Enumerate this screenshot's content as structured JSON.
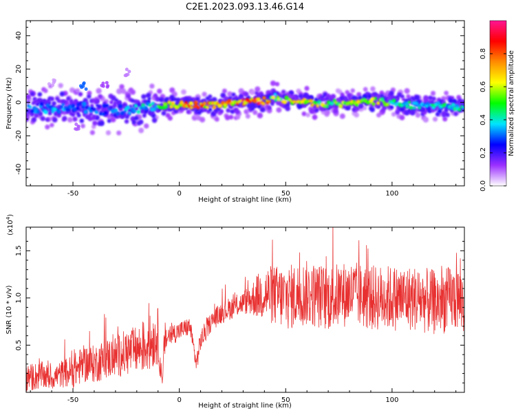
{
  "figure": {
    "title": "C2E1.2023.093.13.46.G14"
  },
  "chart_data": [
    {
      "type": "heatmap",
      "panel": "top",
      "xlabel": "Height of straight line (km)",
      "ylabel": "Frequency (Hz)",
      "xlim": [
        -72,
        134
      ],
      "ylim": [
        -50,
        49
      ],
      "xticks": [
        -50,
        0,
        50,
        100
      ],
      "yticks": [
        -40,
        -20,
        0,
        20,
        40
      ],
      "ytick_labels": [
        "-40",
        "-20",
        "0",
        "20",
        "40"
      ],
      "colorbar": {
        "label": "Normalized spectral amplitude",
        "ticks": [
          0.0,
          0.2,
          0.4,
          0.6,
          0.8
        ],
        "tick_labels": [
          "0.0",
          "0.2",
          "0.4",
          "0.6",
          "0.8"
        ],
        "range": [
          0,
          1
        ],
        "colormap": "rainbow",
        "stops": [
          "#ffffff",
          "#9b30ff",
          "#0000ff",
          "#00e5ff",
          "#00ff00",
          "#ffff00",
          "#ff8c00",
          "#ff0000",
          "#ff1493"
        ]
      },
      "ridge": {
        "x": [
          -72,
          -60,
          -50,
          -40,
          -30,
          -20,
          -10,
          0,
          10,
          20,
          30,
          40,
          45,
          50,
          60,
          70,
          80,
          90,
          100,
          110,
          120,
          134
        ],
        "center_freq": [
          -3,
          -3,
          -3,
          -4,
          -5,
          -4,
          -2,
          -1,
          -2,
          -1,
          0,
          1,
          3,
          1,
          0,
          -1,
          0,
          1,
          0,
          -2,
          -2,
          -3
        ],
        "amplitude": [
          0.35,
          0.4,
          0.35,
          0.35,
          0.35,
          0.45,
          0.55,
          0.9,
          0.85,
          0.8,
          0.95,
          0.95,
          0.6,
          0.7,
          0.75,
          0.65,
          0.7,
          0.7,
          0.6,
          0.5,
          0.5,
          0.45
        ]
      },
      "extra_features": [
        {
          "x": -25,
          "freq": 18,
          "amplitude": 0.08
        },
        {
          "x": -45,
          "freq": 10,
          "amplitude": 0.3
        },
        {
          "x": -35,
          "freq": 10,
          "amplitude": 0.12
        },
        {
          "x": -60,
          "freq": 12,
          "amplitude": 0.06
        },
        {
          "x": -48,
          "freq": -15,
          "amplitude": 0.1
        }
      ]
    },
    {
      "type": "line",
      "panel": "bottom",
      "xlabel": "Height of straight line (km)",
      "ylabel": "SNR (10 * v/v)",
      "yscale_label": "(x10",
      "yscale_exp": "4",
      "yscale_close": ")",
      "xlim": [
        -72,
        134
      ],
      "ylim": [
        0,
        1.75
      ],
      "xticks": [
        -50,
        0,
        50,
        100
      ],
      "yticks": [
        0.5,
        1.0,
        1.5
      ],
      "ytick_labels": [
        "0.5",
        "1.0",
        "1.5"
      ],
      "color": "#e83030",
      "series": [
        {
          "x": [
            -72,
            -65,
            -60,
            -55,
            -50,
            -45,
            -40,
            -35,
            -30,
            -25,
            -20,
            -15,
            -10,
            -8,
            -7,
            -5,
            0,
            5,
            8,
            10,
            15,
            20,
            25,
            30,
            35,
            40,
            50,
            60,
            70,
            80,
            90,
            100,
            110,
            120,
            130,
            134
          ],
          "y": [
            0.15,
            0.18,
            0.15,
            0.2,
            0.22,
            0.3,
            0.3,
            0.35,
            0.38,
            0.42,
            0.45,
            0.5,
            0.6,
            0.05,
            0.55,
            0.6,
            0.65,
            0.7,
            0.3,
            0.55,
            0.75,
            0.85,
            0.9,
            0.95,
            1.0,
            1.05,
            1.0,
            1.05,
            1.0,
            1.05,
            1.0,
            1.0,
            1.0,
            0.95,
            1.0,
            0.95
          ],
          "spread": [
            0.15,
            0.15,
            0.12,
            0.15,
            0.18,
            0.2,
            0.2,
            0.22,
            0.22,
            0.25,
            0.25,
            0.3,
            0.3,
            0.05,
            0.2,
            0.12,
            0.1,
            0.1,
            0.1,
            0.12,
            0.1,
            0.12,
            0.12,
            0.12,
            0.2,
            0.3,
            0.35,
            0.35,
            0.35,
            0.35,
            0.35,
            0.35,
            0.35,
            0.35,
            0.35,
            0.35
          ]
        }
      ]
    }
  ]
}
